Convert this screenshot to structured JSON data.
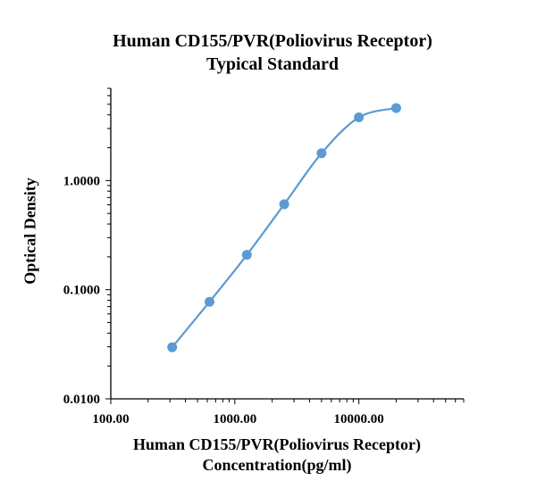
{
  "chart_data": {
    "type": "line",
    "title": [
      "Human CD155/PVR(Poliovirus Receptor)",
      "Typical Standard"
    ],
    "xlabel": [
      "Human CD155/PVR(Poliovirus Receptor)",
      "Concentration(pg/ml)"
    ],
    "ylabel": "Optical Density",
    "x_scale": "log",
    "y_scale": "log",
    "xlim": [
      100,
      70000
    ],
    "ylim": [
      0.01,
      7
    ],
    "x_ticks": [
      100,
      1000,
      10000
    ],
    "x_tick_labels": [
      "100.00",
      "1000.00",
      "10000.00"
    ],
    "y_ticks": [
      0.01,
      0.1,
      1
    ],
    "y_tick_labels": [
      "0.0100",
      "0.1000",
      "1.0000"
    ],
    "grid": false,
    "series": [
      {
        "color": "#5b9bd5",
        "x": [
          312.5,
          625,
          1250,
          2500,
          5000,
          10000,
          20000
        ],
        "y": [
          0.0297,
          0.0775,
          0.2085,
          0.6065,
          1.78,
          3.795,
          4.62
        ]
      }
    ]
  }
}
